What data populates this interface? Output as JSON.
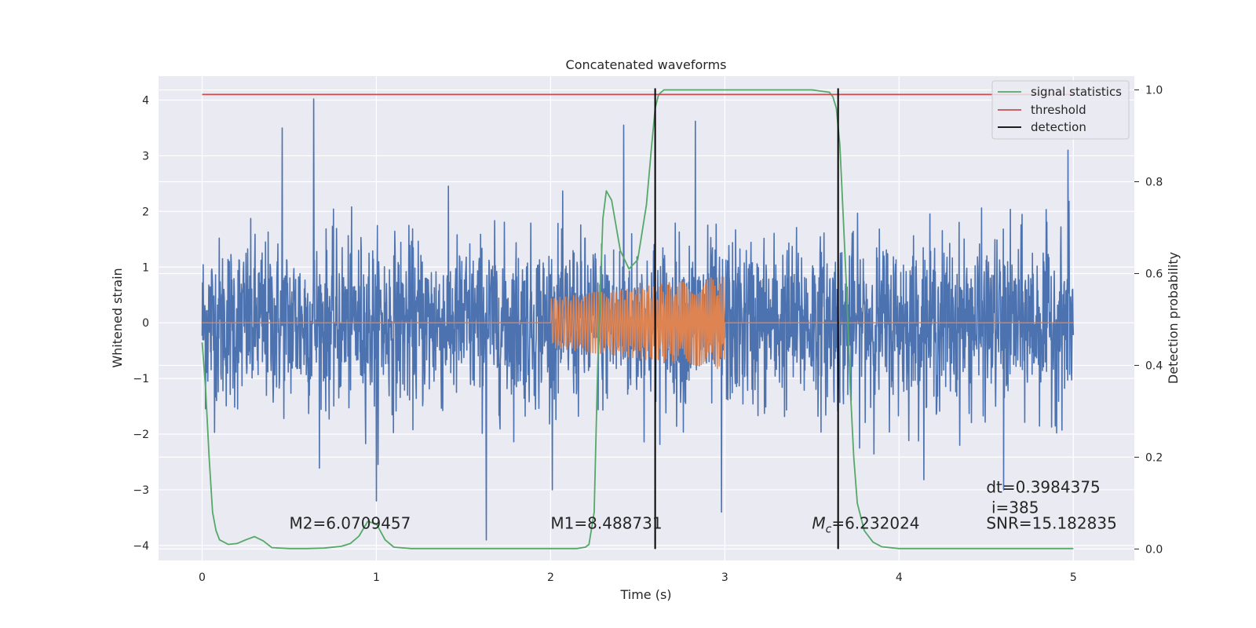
{
  "chart_data": {
    "type": "line",
    "title": "Concatenated waveforms",
    "xlabel": "Time (s)",
    "ylabel": "Whitened strain",
    "y2label": "Detection probability",
    "xlim": [
      -0.25,
      5.35
    ],
    "ylim": [
      -4.27,
      4.43
    ],
    "y2lim": [
      -0.025,
      1.03
    ],
    "x_ticks": [
      0,
      1,
      2,
      3,
      4,
      5
    ],
    "y_ticks": [
      -4,
      -3,
      -2,
      -1,
      0,
      1,
      2,
      3,
      4
    ],
    "y2_ticks": [
      0.0,
      0.2,
      0.4,
      0.6,
      0.8,
      1.0
    ],
    "x_tick_labels": [
      "0",
      "1",
      "2",
      "3",
      "4",
      "5"
    ],
    "y_tick_labels": [
      "−4",
      "−3",
      "−2",
      "−1",
      "0",
      "1",
      "2",
      "3",
      "4"
    ],
    "y2_tick_labels": [
      "0.0",
      "0.2",
      "0.4",
      "0.6",
      "0.8",
      "1.0"
    ],
    "grid": true,
    "legend_position": "top-right",
    "colors": {
      "noise": "#4c72b0",
      "template": "#dd8452",
      "signal": "#55a868",
      "threshold": "#c44e52",
      "detection": "#000000",
      "axes_bg": "#eaeaf2",
      "grid": "#ffffff"
    },
    "series": [
      {
        "name": "",
        "axis": "left",
        "kind": "noise",
        "x_range": [
          0,
          5
        ],
        "amplitude_envelope": 0.75,
        "spike_extremes": [
          {
            "x": 0.64,
            "y": 4.02
          },
          {
            "x": 0.46,
            "y": 3.5
          },
          {
            "x": 1.63,
            "y": -3.9
          },
          {
            "x": 1.0,
            "y": -3.2
          },
          {
            "x": 2.42,
            "y": 3.55
          },
          {
            "x": 2.83,
            "y": 3.62
          },
          {
            "x": 2.98,
            "y": -3.4
          },
          {
            "x": 4.6,
            "y": -3.0
          },
          {
            "x": 4.97,
            "y": 3.1
          }
        ]
      },
      {
        "name": "",
        "axis": "left",
        "kind": "template",
        "x": [
          0,
          2.0,
          2.0,
          3.0,
          3.0,
          5.0
        ],
        "amplitude": [
          0,
          0,
          0.45,
          0.85,
          0,
          0
        ],
        "chirp_start": 2.0,
        "chirp_end": 3.0
      },
      {
        "name": "signal statistics",
        "axis": "right",
        "x": [
          0.0,
          0.02,
          0.04,
          0.06,
          0.08,
          0.1,
          0.15,
          0.2,
          0.25,
          0.3,
          0.35,
          0.4,
          0.5,
          0.6,
          0.7,
          0.8,
          0.85,
          0.9,
          0.95,
          1.0,
          1.05,
          1.1,
          1.2,
          1.5,
          2.0,
          2.15,
          2.2,
          2.22,
          2.25,
          2.27,
          2.3,
          2.32,
          2.35,
          2.4,
          2.45,
          2.5,
          2.55,
          2.58,
          2.6,
          2.62,
          2.65,
          2.7,
          3.0,
          3.5,
          3.6,
          3.62,
          3.64,
          3.66,
          3.68,
          3.7,
          3.72,
          3.74,
          3.76,
          3.8,
          3.85,
          3.9,
          4.0,
          4.5,
          5.0
        ],
        "y": [
          0.45,
          0.35,
          0.2,
          0.08,
          0.04,
          0.02,
          0.01,
          0.012,
          0.02,
          0.027,
          0.018,
          0.003,
          0.001,
          0.001,
          0.002,
          0.006,
          0.012,
          0.028,
          0.06,
          0.055,
          0.02,
          0.004,
          0.001,
          0.001,
          0.001,
          0.001,
          0.004,
          0.01,
          0.08,
          0.4,
          0.72,
          0.78,
          0.76,
          0.65,
          0.61,
          0.63,
          0.75,
          0.88,
          0.96,
          0.99,
          1.0,
          1.0,
          1.0,
          1.0,
          0.995,
          0.985,
          0.96,
          0.88,
          0.72,
          0.55,
          0.35,
          0.2,
          0.1,
          0.04,
          0.015,
          0.005,
          0.001,
          0.001,
          0.001
        ]
      },
      {
        "name": "threshold",
        "axis": "right",
        "x": [
          0,
          5
        ],
        "y": [
          0.99,
          0.99
        ]
      },
      {
        "name": "detection",
        "axis": "right",
        "vertical_lines_x": [
          2.6,
          3.65
        ],
        "y_range": [
          0.0,
          1.0
        ]
      }
    ],
    "annotations": [
      {
        "text": "M2=6.0709457",
        "x": 0.5,
        "y": -3.7
      },
      {
        "text": "M1=8.488731",
        "x": 2.0,
        "y": -3.7
      },
      {
        "text": "Mc=6.232024",
        "label_main": "M",
        "label_sub": "c",
        "label_value": "=6.232024",
        "x": 3.5,
        "y": -3.7
      },
      {
        "text": "dt=0.3984375",
        "x": 4.5,
        "y": -3.05
      },
      {
        "text": "i=385",
        "x": 4.53,
        "y": -3.42
      },
      {
        "text": "SNR=15.182835",
        "x": 4.5,
        "y": -3.7
      }
    ]
  }
}
